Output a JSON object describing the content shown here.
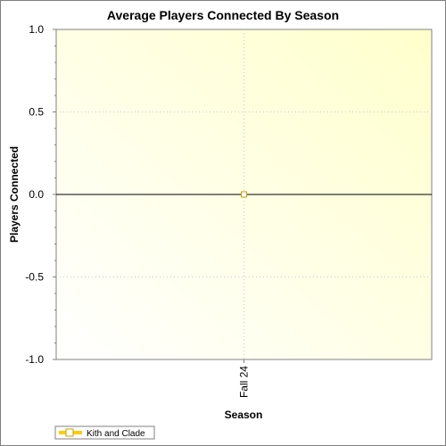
{
  "chart_data": {
    "type": "line",
    "title": "Average Players Connected By Season",
    "xlabel": "Season",
    "ylabel": "Players Connected",
    "categories": [
      "Fall 24"
    ],
    "series": [
      {
        "name": "Kith and Clade",
        "values": [
          0.0
        ]
      }
    ],
    "ylim": [
      -1.0,
      1.0
    ],
    "yticks": [
      1.0,
      0.5,
      0.0,
      -0.5,
      -1.0
    ],
    "ytick_labels": [
      "1.0",
      "0.5",
      "0.0",
      "-0.5",
      "-1.0"
    ],
    "grid": true,
    "legend_position": "bottom-left",
    "colors": {
      "series": "#ffcc00",
      "marker_stroke": "#c8a000",
      "plot_bg_start": "#ffffff",
      "plot_bg_end": "#ffffcc",
      "grid": "#c8c8c8"
    }
  }
}
